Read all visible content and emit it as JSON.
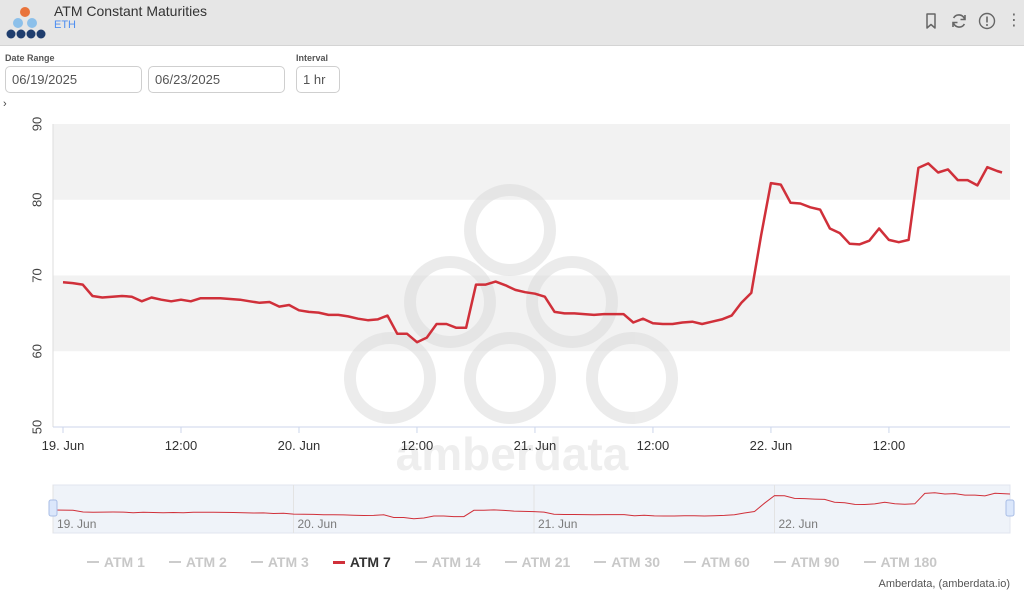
{
  "header": {
    "title": "ATM Constant Maturities",
    "subtitle": "ETH",
    "icons": [
      "bookmark-icon",
      "refresh-icon",
      "info-icon",
      "more-vertical-icon"
    ]
  },
  "controls": {
    "date_range_label": "Date Range",
    "start_date": "06/19/2025",
    "end_date": "06/23/2025",
    "interval_label": "Interval",
    "interval": "1 hr",
    "expander": "›"
  },
  "watermark": "amberdata",
  "credits": "Amberdata, (amberdata.io)",
  "legend": [
    {
      "label": "ATM 1",
      "active": false
    },
    {
      "label": "ATM 2",
      "active": false
    },
    {
      "label": "ATM 3",
      "active": false
    },
    {
      "label": "ATM 7",
      "active": true
    },
    {
      "label": "ATM 14",
      "active": false
    },
    {
      "label": "ATM 21",
      "active": false
    },
    {
      "label": "ATM 30",
      "active": false
    },
    {
      "label": "ATM 60",
      "active": false
    },
    {
      "label": "ATM 90",
      "active": false
    },
    {
      "label": "ATM 180",
      "active": false
    }
  ],
  "chart_data": {
    "type": "line",
    "x_unit": "hours since 19. Jun 00:00",
    "xlim": [
      0,
      95.5
    ],
    "ylim": [
      50,
      90
    ],
    "yticks": [
      50,
      60,
      70,
      80,
      90
    ],
    "xticks": [
      {
        "x": 0,
        "label": "19. Jun"
      },
      {
        "x": 12,
        "label": "12:00"
      },
      {
        "x": 24,
        "label": "20. Jun"
      },
      {
        "x": 36,
        "label": "12:00"
      },
      {
        "x": 48,
        "label": "21. Jun"
      },
      {
        "x": 60,
        "label": "12:00"
      },
      {
        "x": 72,
        "label": "22. Jun"
      },
      {
        "x": 84,
        "label": "12:00"
      }
    ],
    "navigator_ticks": [
      {
        "x": 0,
        "label": "19. Jun"
      },
      {
        "x": 24,
        "label": "20. Jun"
      },
      {
        "x": 48,
        "label": "21. Jun"
      },
      {
        "x": 72,
        "label": "22. Jun"
      }
    ],
    "series": [
      {
        "name": "ATM 7",
        "color": "#d0303a",
        "points": [
          [
            0,
            69.1
          ],
          [
            1,
            69.0
          ],
          [
            2,
            68.8
          ],
          [
            3,
            67.3
          ],
          [
            4,
            67.1
          ],
          [
            5,
            67.2
          ],
          [
            6,
            67.3
          ],
          [
            7,
            67.2
          ],
          [
            8,
            66.6
          ],
          [
            9,
            67.1
          ],
          [
            10,
            66.8
          ],
          [
            11,
            66.6
          ],
          [
            12,
            66.8
          ],
          [
            13,
            66.6
          ],
          [
            14,
            67.0
          ],
          [
            15,
            67.0
          ],
          [
            16,
            67.0
          ],
          [
            17,
            66.9
          ],
          [
            18,
            66.8
          ],
          [
            19,
            66.6
          ],
          [
            20,
            66.4
          ],
          [
            21,
            66.5
          ],
          [
            22,
            65.9
          ],
          [
            23,
            66.1
          ],
          [
            24,
            65.4
          ],
          [
            25,
            65.2
          ],
          [
            26,
            65.1
          ],
          [
            27,
            64.8
          ],
          [
            28,
            64.8
          ],
          [
            29,
            64.6
          ],
          [
            30,
            64.3
          ],
          [
            31,
            64.1
          ],
          [
            32,
            64.2
          ],
          [
            33,
            64.7
          ],
          [
            34,
            62.3
          ],
          [
            35,
            62.3
          ],
          [
            36,
            61.2
          ],
          [
            37,
            61.8
          ],
          [
            38,
            63.6
          ],
          [
            39,
            63.6
          ],
          [
            40,
            63.1
          ],
          [
            41,
            63.1
          ],
          [
            42,
            68.8
          ],
          [
            43,
            68.8
          ],
          [
            44,
            69.2
          ],
          [
            45,
            68.7
          ],
          [
            46,
            68.1
          ],
          [
            47,
            67.8
          ],
          [
            48,
            67.6
          ],
          [
            49,
            67.2
          ],
          [
            50,
            65.2
          ],
          [
            51,
            65.0
          ],
          [
            52,
            65.0
          ],
          [
            53,
            64.9
          ],
          [
            54,
            64.8
          ],
          [
            55,
            64.9
          ],
          [
            56,
            64.9
          ],
          [
            57,
            64.9
          ],
          [
            58,
            63.8
          ],
          [
            59,
            64.3
          ],
          [
            60,
            63.7
          ],
          [
            61,
            63.6
          ],
          [
            62,
            63.6
          ],
          [
            63,
            63.8
          ],
          [
            64,
            63.9
          ],
          [
            65,
            63.6
          ],
          [
            66,
            63.9
          ],
          [
            67,
            64.2
          ],
          [
            68,
            64.7
          ],
          [
            69,
            66.4
          ],
          [
            70,
            67.7
          ],
          [
            71,
            75.3
          ],
          [
            72,
            82.2
          ],
          [
            73,
            82.0
          ],
          [
            74,
            79.6
          ],
          [
            75,
            79.5
          ],
          [
            76,
            79.0
          ],
          [
            77,
            78.7
          ],
          [
            78,
            76.2
          ],
          [
            79,
            75.6
          ],
          [
            80,
            74.2
          ],
          [
            81,
            74.1
          ],
          [
            82,
            74.6
          ],
          [
            83,
            76.2
          ],
          [
            84,
            74.7
          ],
          [
            85,
            74.4
          ],
          [
            86,
            74.7
          ],
          [
            87,
            84.2
          ],
          [
            88,
            84.8
          ],
          [
            89,
            83.6
          ],
          [
            90,
            84.0
          ],
          [
            91,
            82.6
          ],
          [
            92,
            82.6
          ],
          [
            93,
            81.9
          ],
          [
            94,
            84.3
          ],
          [
            95,
            83.8
          ],
          [
            95.5,
            83.6
          ]
        ]
      }
    ],
    "grid": "alternating horizontal bands",
    "legend_position": "bottom"
  }
}
